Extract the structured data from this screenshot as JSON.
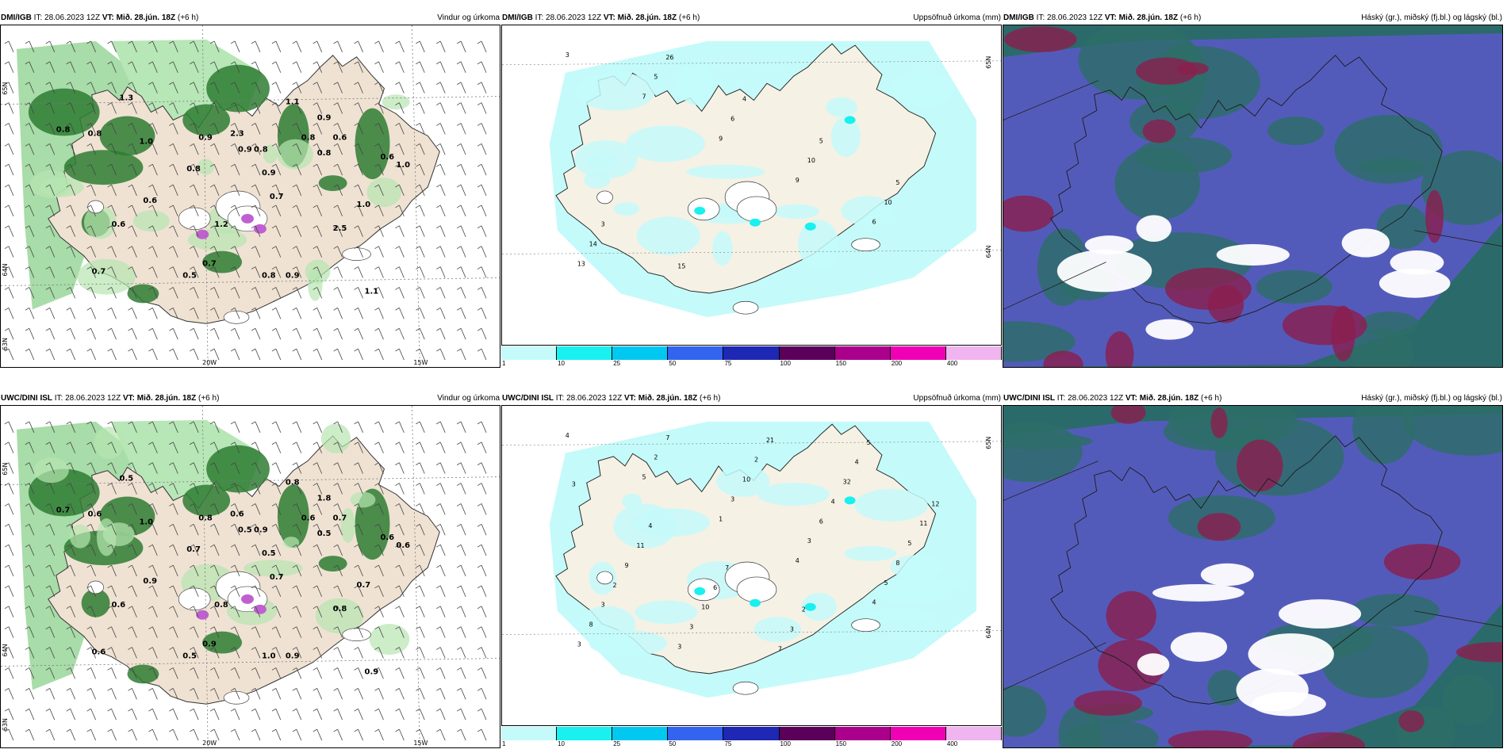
{
  "panels": [
    {
      "model": "DMI/IGB",
      "it": "28.06.2023 12Z",
      "vt": "Mið. 28.jún. 18Z",
      "lead": "(+6 h)",
      "product": "Vindur og úrkoma",
      "type": "wind",
      "lat_labels": [
        "65N",
        "64N",
        "63N"
      ],
      "lon_labels": [
        "20W",
        "15W"
      ],
      "values": [
        "0.8",
        "0.8",
        "1.0",
        "0.9",
        "0.8",
        "0.9",
        "0.8",
        "0.8",
        "0.8",
        "0.6",
        "0.6",
        "0.7",
        "0.7",
        "1.2",
        "0.6",
        "0.5",
        "0.8",
        "0.9",
        "1.0",
        "0.6",
        "0.9",
        "0.9",
        "1.0",
        "1.1",
        "1.3",
        "0.7",
        "2.5",
        "2.3",
        "1.1"
      ]
    },
    {
      "model": "DMI/IGB",
      "it": "28.06.2023 12Z",
      "vt": "Mið. 28.jún. 18Z",
      "lead": "(+6 h)",
      "product": "Uppsöfnuð úrkoma (mm)",
      "type": "precip",
      "lat_labels": [
        "65N",
        "64N"
      ],
      "values": [
        "3",
        "7",
        "9",
        "9",
        "6",
        "13",
        "5",
        "6",
        "10",
        "10",
        "14",
        "26",
        "4",
        "5",
        "5",
        "3",
        "15"
      ]
    },
    {
      "model": "DMI/IGB",
      "it": "28.06.2023 12Z",
      "vt": "Mið. 28.jún. 18Z",
      "lead": "(+6 h)",
      "product": "Háský (gr.), miðský (fj.bl.) og lágský (bl.)",
      "type": "cloud"
    },
    {
      "model": "UWC/DINI ISL",
      "it": "28.06.2023 12Z",
      "vt": "Mið. 28.jún. 18Z",
      "lead": "(+6 h)",
      "product": "Vindur og úrkoma",
      "type": "wind",
      "lat_labels": [
        "65N",
        "64N",
        "63N"
      ],
      "lon_labels": [
        "20W",
        "15W"
      ],
      "values": [
        "0.7",
        "0.6",
        "1.0",
        "0.8",
        "0.7",
        "0.5",
        "0.9",
        "0.6",
        "0.5",
        "0.9",
        "0.6",
        "0.9",
        "0.6",
        "0.8",
        "0.7",
        "0.5",
        "1.0",
        "0.9",
        "0.7",
        "0.6",
        "0.5",
        "1.8",
        "0.6",
        "0.8",
        "0.5",
        "0.7",
        "0.8",
        "0.6",
        "0.9"
      ]
    },
    {
      "model": "UWC/DINI ISL",
      "it": "28.06.2023 12Z",
      "vt": "Mið. 28.jún. 18Z",
      "lead": "(+6 h)",
      "product": "Uppsöfnuð úrkoma (mm)",
      "type": "precip",
      "lat_labels": [
        "65N",
        "64N"
      ],
      "values": [
        "4",
        "5",
        "1",
        "4",
        "4",
        "3",
        "2",
        "3",
        "3",
        "5",
        "8",
        "7",
        "10",
        "6",
        "8",
        "3",
        "3",
        "2",
        "4",
        "5",
        "2",
        "3",
        "21",
        "32",
        "11",
        "9",
        "10",
        "7",
        "4",
        "12",
        "11",
        "6",
        "3",
        "5",
        "3",
        "4",
        "7",
        "2"
      ]
    },
    {
      "model": "UWC/DINI ISL",
      "it": "28.06.2023 12Z",
      "vt": "Mið. 28.jún. 18Z",
      "lead": "(+6 h)",
      "product": "Háský (gr.), miðský (fj.bl.) og lágský (bl.)",
      "type": "cloud"
    }
  ],
  "legend": {
    "colors": [
      "#c4fafa",
      "#19f0f0",
      "#00c8f0",
      "#3264f0",
      "#1e28b4",
      "#5a005a",
      "#aa008c",
      "#f000b4",
      "#f0b4f0"
    ],
    "ticks": [
      "1",
      "10",
      "25",
      "50",
      "75",
      "100",
      "150",
      "200",
      "400"
    ]
  }
}
